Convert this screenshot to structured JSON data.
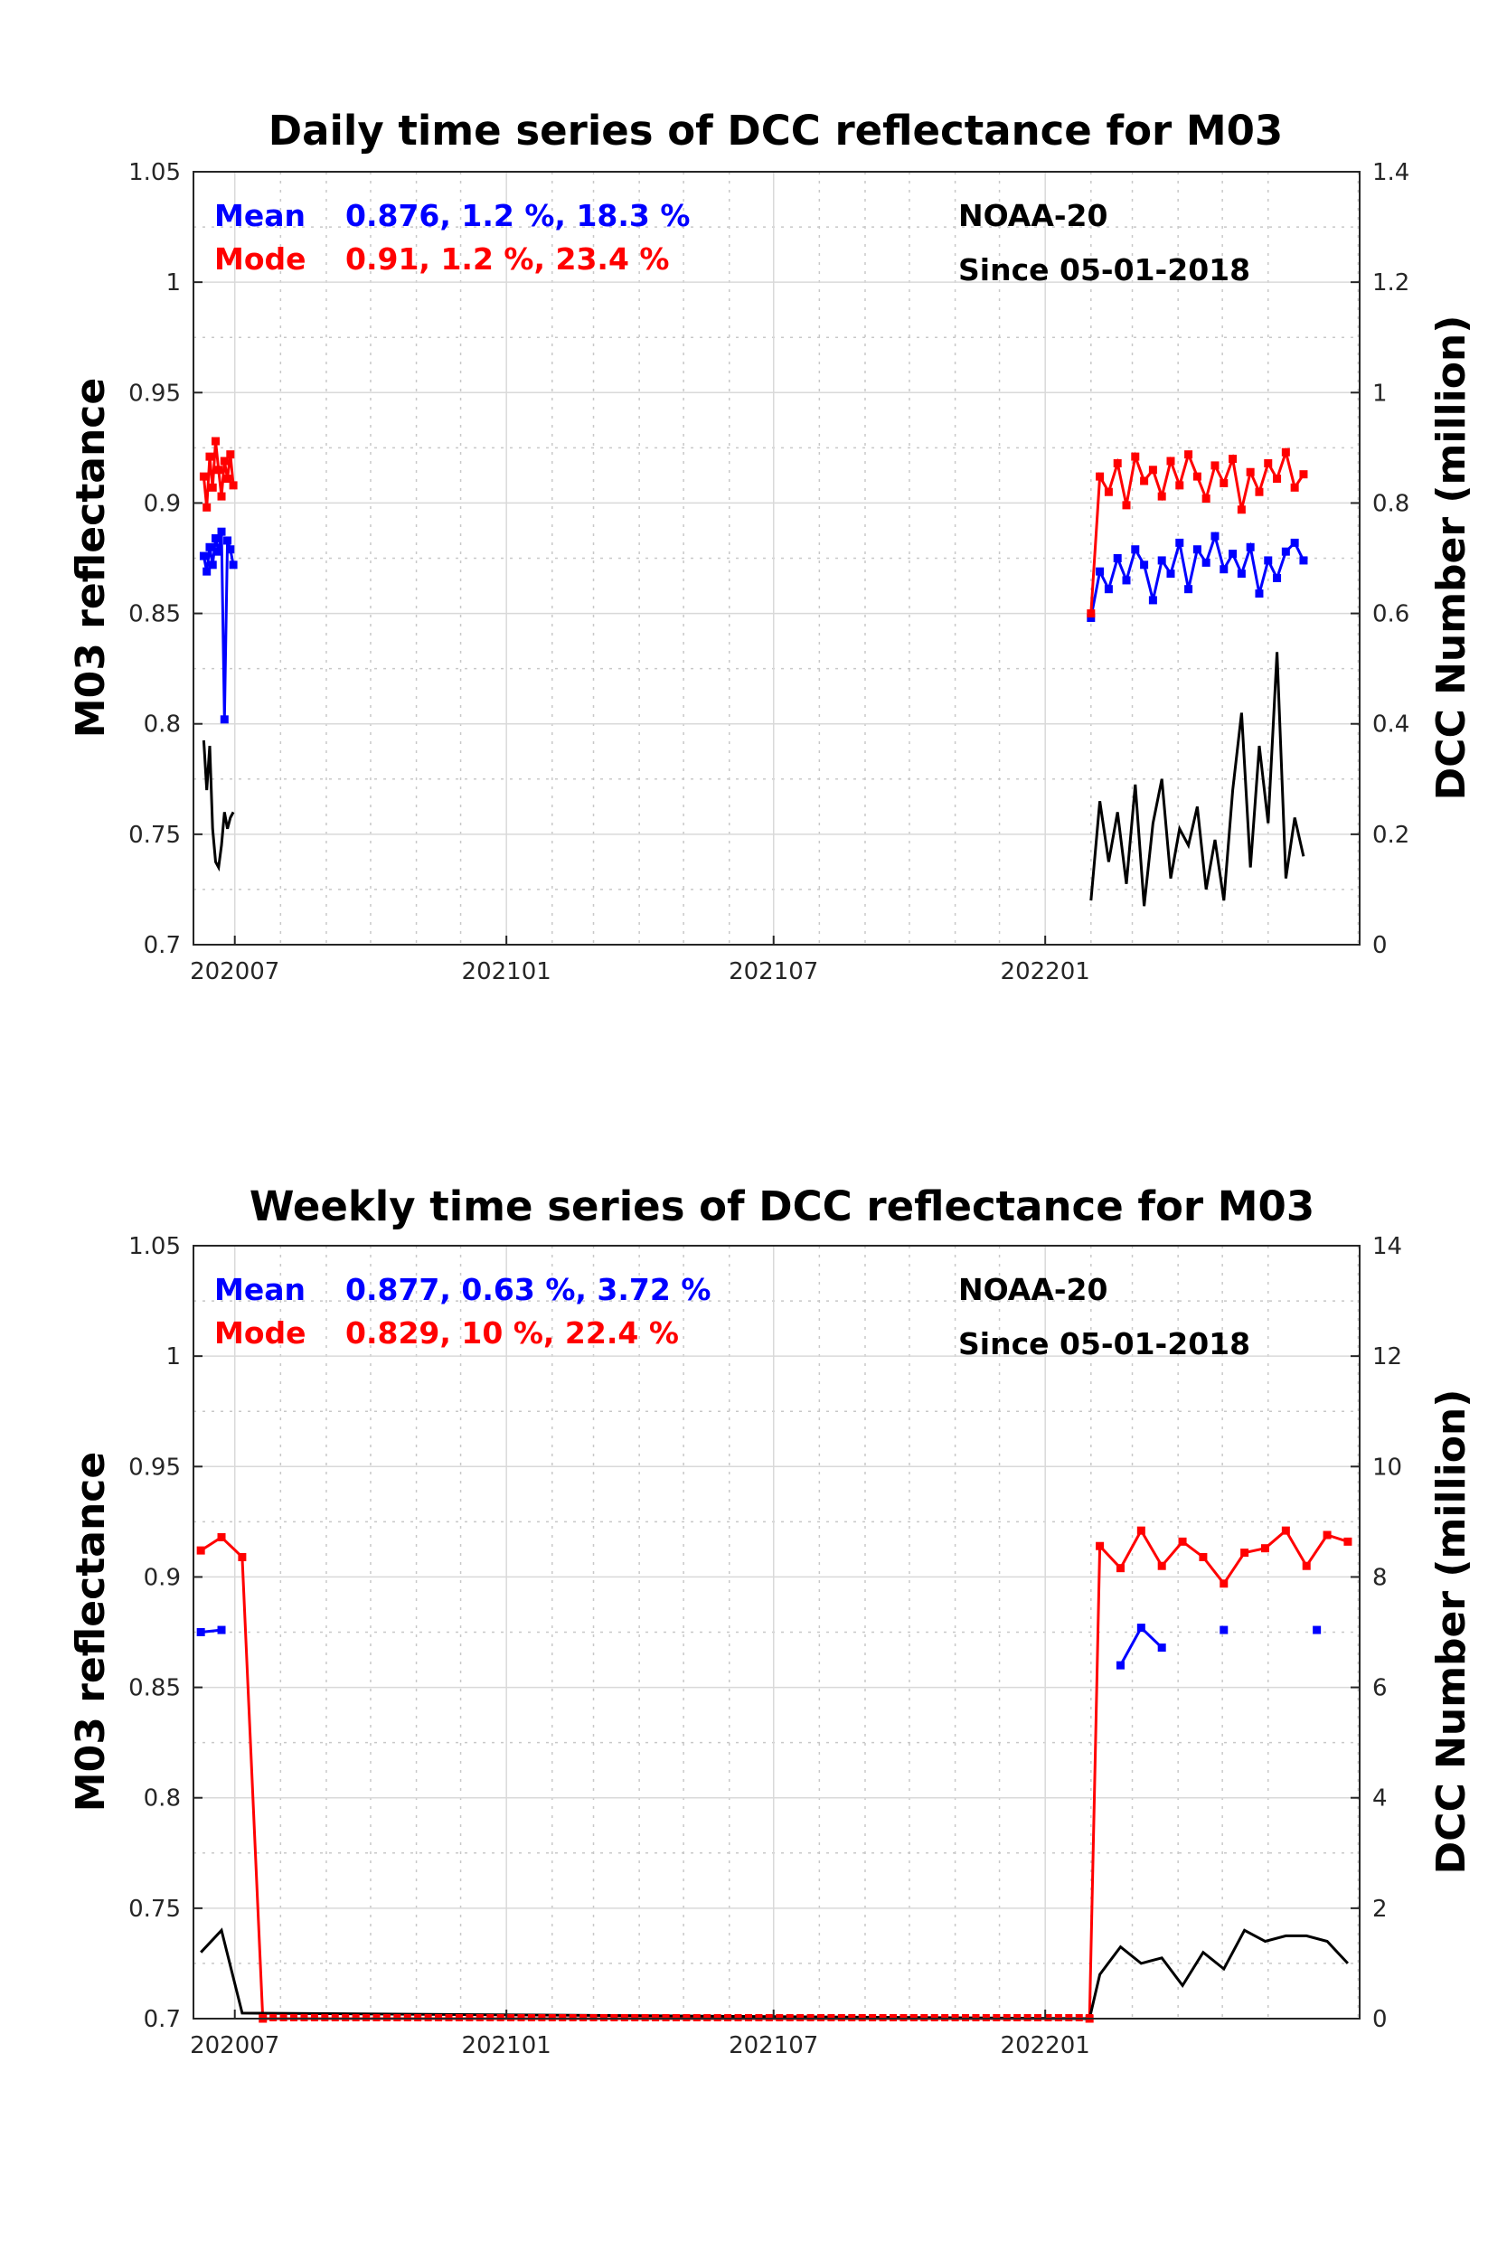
{
  "chart_data": [
    {
      "type": "line",
      "title": "Daily time series of DCC reflectance for M03",
      "ylabel": "M03 reflectance",
      "y2label": "DCC Number (million)",
      "ylim": [
        0.7,
        1.05
      ],
      "y2lim": [
        0,
        1.4
      ],
      "yticks": [
        "0.7",
        "0.75",
        "0.8",
        "0.85",
        "0.9",
        "0.95",
        "1",
        "1.05"
      ],
      "y2ticks": [
        "0",
        "0.2",
        "0.4",
        "0.6",
        "0.8",
        "1",
        "1.2",
        "1.4"
      ],
      "xticks": [
        "202007",
        "202101",
        "202107",
        "202201"
      ],
      "grid": true,
      "annotations": {
        "mean_label": "Mean",
        "mean_stats": "0.876, 1.2 %, 18.3 %",
        "mode_label": "Mode",
        "mode_stats": "0.91, 1.2 %, 23.4 %",
        "satellite": "NOAA-20",
        "since": "Since 05-01-2018"
      },
      "series": [
        {
          "name": "Mean",
          "color": "#0000ff",
          "axis": "left",
          "x": [
            "2020-06-10",
            "2020-06-12",
            "2020-06-14",
            "2020-06-16",
            "2020-06-18",
            "2020-06-20",
            "2020-06-22",
            "2020-06-24",
            "2020-06-26",
            "2020-06-28",
            "2020-06-30",
            "2022-02-01",
            "2022-02-07",
            "2022-02-13",
            "2022-02-19",
            "2022-02-25",
            "2022-03-03",
            "2022-03-09",
            "2022-03-15",
            "2022-03-21",
            "2022-03-27",
            "2022-04-02",
            "2022-04-08",
            "2022-04-14",
            "2022-04-20",
            "2022-04-26",
            "2022-05-02",
            "2022-05-08",
            "2022-05-14",
            "2022-05-20",
            "2022-05-26",
            "2022-06-01",
            "2022-06-07",
            "2022-06-13",
            "2022-06-19",
            "2022-06-25"
          ],
          "y": [
            0.876,
            0.869,
            0.88,
            0.872,
            0.884,
            0.878,
            0.887,
            0.802,
            0.883,
            0.879,
            0.872,
            0.848,
            0.869,
            0.861,
            0.875,
            0.865,
            0.879,
            0.872,
            0.856,
            0.874,
            0.868,
            0.882,
            0.861,
            0.879,
            0.873,
            0.885,
            0.87,
            0.877,
            0.868,
            0.88,
            0.859,
            0.874,
            0.866,
            0.878,
            0.882,
            0.874
          ]
        },
        {
          "name": "Mode",
          "color": "#ff0000",
          "axis": "left",
          "x": [
            "2020-06-10",
            "2020-06-12",
            "2020-06-14",
            "2020-06-16",
            "2020-06-18",
            "2020-06-20",
            "2020-06-22",
            "2020-06-24",
            "2020-06-26",
            "2020-06-28",
            "2020-06-30",
            "2022-02-01",
            "2022-02-07",
            "2022-02-13",
            "2022-02-19",
            "2022-02-25",
            "2022-03-03",
            "2022-03-09",
            "2022-03-15",
            "2022-03-21",
            "2022-03-27",
            "2022-04-02",
            "2022-04-08",
            "2022-04-14",
            "2022-04-20",
            "2022-04-26",
            "2022-05-02",
            "2022-05-08",
            "2022-05-14",
            "2022-05-20",
            "2022-05-26",
            "2022-06-01",
            "2022-06-07",
            "2022-06-13",
            "2022-06-19",
            "2022-06-25"
          ],
          "y": [
            0.912,
            0.898,
            0.921,
            0.907,
            0.928,
            0.915,
            0.903,
            0.919,
            0.911,
            0.922,
            0.908,
            0.85,
            0.912,
            0.905,
            0.918,
            0.899,
            0.921,
            0.91,
            0.915,
            0.903,
            0.919,
            0.908,
            0.922,
            0.912,
            0.902,
            0.917,
            0.909,
            0.92,
            0.897,
            0.914,
            0.905,
            0.918,
            0.911,
            0.923,
            0.907,
            0.913
          ]
        },
        {
          "name": "DCC Number",
          "color": "#000000",
          "axis": "right",
          "x": [
            "2020-06-10",
            "2020-06-12",
            "2020-06-14",
            "2020-06-16",
            "2020-06-18",
            "2020-06-20",
            "2020-06-22",
            "2020-06-24",
            "2020-06-26",
            "2020-06-28",
            "2020-06-30",
            "2022-02-01",
            "2022-02-07",
            "2022-02-13",
            "2022-02-19",
            "2022-02-25",
            "2022-03-03",
            "2022-03-09",
            "2022-03-15",
            "2022-03-21",
            "2022-03-27",
            "2022-04-02",
            "2022-04-08",
            "2022-04-14",
            "2022-04-20",
            "2022-04-26",
            "2022-05-02",
            "2022-05-08",
            "2022-05-14",
            "2022-05-20",
            "2022-05-26",
            "2022-06-01",
            "2022-06-07",
            "2022-06-13",
            "2022-06-19",
            "2022-06-25"
          ],
          "y": [
            0.37,
            0.28,
            0.36,
            0.21,
            0.15,
            0.14,
            0.18,
            0.24,
            0.21,
            0.23,
            0.24,
            0.08,
            0.26,
            0.15,
            0.24,
            0.11,
            0.29,
            0.07,
            0.22,
            0.3,
            0.12,
            0.21,
            0.18,
            0.25,
            0.1,
            0.19,
            0.08,
            0.28,
            0.42,
            0.14,
            0.36,
            0.22,
            0.53,
            0.12,
            0.23,
            0.16
          ]
        }
      ]
    },
    {
      "type": "line",
      "title": "Weekly time series of DCC reflectance for M03",
      "ylabel": "M03 reflectance",
      "y2label": "DCC Number (million)",
      "ylim": [
        0.7,
        1.05
      ],
      "y2lim": [
        0,
        14
      ],
      "yticks": [
        "0.7",
        "0.75",
        "0.8",
        "0.85",
        "0.9",
        "0.95",
        "1",
        "1.05"
      ],
      "y2ticks": [
        "0",
        "2",
        "4",
        "6",
        "8",
        "10",
        "12",
        "14"
      ],
      "xticks": [
        "202007",
        "202101",
        "202107",
        "202201"
      ],
      "grid": true,
      "annotations": {
        "mean_label": "Mean",
        "mean_stats": "0.877, 0.63 %, 3.72 %",
        "mode_label": "Mode",
        "mode_stats": "0.829, 10 %, 22.4 %",
        "satellite": "NOAA-20",
        "since": "Since 05-01-2018"
      },
      "series": [
        {
          "name": "Mean",
          "color": "#0000ff",
          "axis": "left",
          "x": [
            "2020-06-08",
            "2020-06-22",
            "2022-02-21",
            "2022-03-07",
            "2022-03-21",
            "2022-05-02",
            "2022-07-04"
          ],
          "y": [
            0.875,
            0.876,
            0.86,
            0.877,
            0.868,
            0.876,
            0.876
          ],
          "segments": [
            [
              0,
              1
            ],
            [
              2,
              4
            ]
          ]
        },
        {
          "name": "Mode",
          "color": "#ff0000",
          "axis": "left",
          "x": [
            "2020-06-08",
            "2020-06-22",
            "2020-07-06",
            "2020-07-20",
            "2022-01-31",
            "2022-02-07",
            "2022-02-21",
            "2022-03-07",
            "2022-03-21",
            "2022-04-04",
            "2022-04-18",
            "2022-05-02",
            "2022-05-16",
            "2022-05-30",
            "2022-06-13",
            "2022-06-27",
            "2022-07-11",
            "2022-07-25"
          ],
          "y": [
            0.912,
            0.918,
            0.909,
            0.7,
            0.7,
            0.914,
            0.904,
            0.921,
            0.905,
            0.916,
            0.909,
            0.897,
            0.911,
            0.913,
            0.921,
            0.905,
            0.919,
            0.916
          ]
        },
        {
          "name": "DCC Number",
          "color": "#000000",
          "axis": "right",
          "x": [
            "2020-06-08",
            "2020-06-22",
            "2020-07-06",
            "2022-01-31",
            "2022-02-07",
            "2022-02-21",
            "2022-03-07",
            "2022-03-21",
            "2022-04-04",
            "2022-04-18",
            "2022-05-02",
            "2022-05-16",
            "2022-05-30",
            "2022-06-13",
            "2022-06-27",
            "2022-07-11",
            "2022-07-25"
          ],
          "y": [
            1.2,
            1.6,
            0.1,
            0.0,
            0.8,
            1.3,
            1.0,
            1.1,
            0.6,
            1.2,
            0.9,
            1.6,
            1.4,
            1.5,
            1.5,
            1.4,
            1.0
          ]
        }
      ]
    }
  ]
}
